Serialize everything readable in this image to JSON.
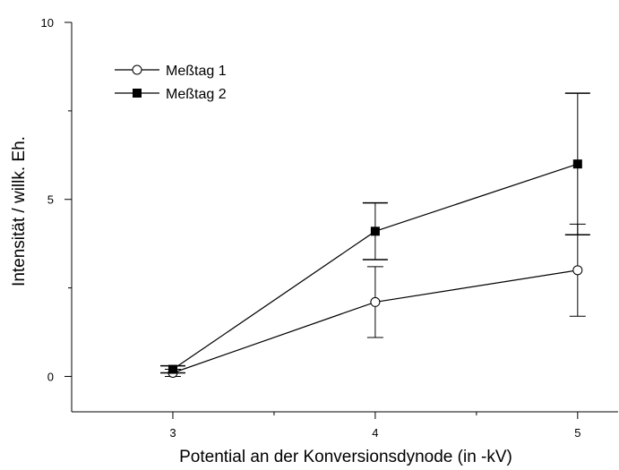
{
  "chart_data": {
    "type": "scatter",
    "xlabel": "Potential an der Konversionsdynode (in -kV)",
    "ylabel": "Intensität / willk. Eh.",
    "xlim": [
      2.5,
      5.2
    ],
    "ylim": [
      -1,
      10
    ],
    "xticks": [
      3,
      4,
      5
    ],
    "yticks": [
      0,
      5,
      10
    ],
    "grid": false,
    "legend_position": "top-left",
    "series": [
      {
        "name": "Meßtag 1",
        "marker": "open-circle",
        "color": "#000000",
        "x": [
          3,
          4,
          5
        ],
        "y": [
          0.1,
          2.1,
          3.0
        ],
        "yerr": [
          0.1,
          1.0,
          1.3
        ]
      },
      {
        "name": "Meßtag 2",
        "marker": "filled-square",
        "color": "#000000",
        "x": [
          3,
          4,
          5
        ],
        "y": [
          0.2,
          4.1,
          6.0
        ],
        "yerr": [
          0.1,
          0.8,
          2.0
        ]
      }
    ]
  }
}
